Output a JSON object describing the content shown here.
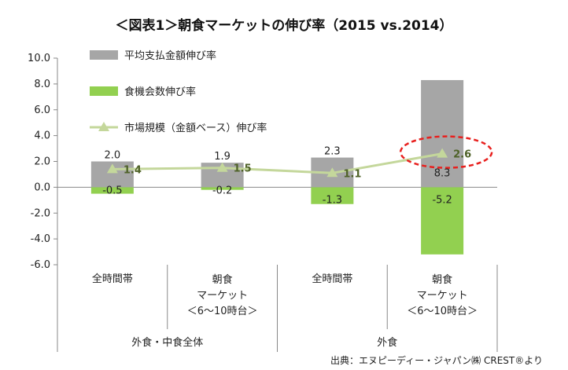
{
  "chart_data": {
    "type": "bar",
    "title": "＜図表1＞朝食マーケットの伸び率（2015 vs.2014）",
    "categories": [
      "全時間帯",
      "朝食\nマーケット\n＜6～10時台＞",
      "全時間帯",
      "朝食\nマーケット\n＜6～10時台＞"
    ],
    "groups": [
      {
        "label": "外食・中食全体",
        "span": [
          0,
          1
        ]
      },
      {
        "label": "外食",
        "span": [
          2,
          3
        ]
      }
    ],
    "series": [
      {
        "name": "平均支払金額伸び率",
        "type": "bar",
        "color": "#a6a6a6",
        "values": [
          2.0,
          1.9,
          2.3,
          8.3
        ],
        "labels": [
          "2.0",
          "1.9",
          "2.3",
          "8.3"
        ]
      },
      {
        "name": "食機会数伸び率",
        "type": "bar",
        "color": "#92d050",
        "values": [
          -0.5,
          -0.2,
          -1.3,
          -5.2
        ],
        "labels": [
          "-0.5",
          "-0.2",
          "-1.3",
          "-5.2"
        ]
      },
      {
        "name": "市場規模（金額ベース）伸び率",
        "type": "line",
        "color": "#c4d79b",
        "values": [
          1.4,
          1.5,
          1.1,
          2.6
        ],
        "labels": [
          "1.4",
          "1.5",
          "1.1",
          "2.6"
        ]
      }
    ],
    "ylim": [
      -6.0,
      10.0
    ],
    "yticks": [
      10.0,
      8.0,
      6.0,
      4.0,
      2.0,
      0.0,
      -2.0,
      -4.0,
      -6.0
    ],
    "ytick_labels": [
      "10.0",
      "8.0",
      "6.0",
      "4.0",
      "2.0",
      "0.0",
      "-2.0",
      "-4.0",
      "-6.0"
    ],
    "grid": false,
    "legend": "top-left",
    "highlight": {
      "category_index": 3,
      "shape": "dashed-ellipse",
      "color": "#e8201e"
    },
    "source": "出典：エヌピーディー・ジャパン㈱ CREST®より"
  }
}
